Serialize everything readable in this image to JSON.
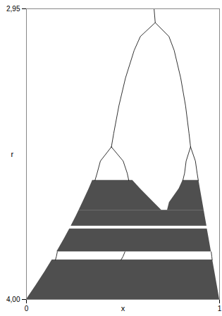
{
  "chart_data": {
    "type": "bifurcation",
    "x_label": "x",
    "y_label": "r",
    "xlim": [
      0,
      1
    ],
    "ylim": [
      2.95,
      4.0
    ],
    "xticks": [
      0,
      1
    ],
    "yticks": [
      {
        "value": 2.95,
        "label": "2,95"
      },
      {
        "value": 4.0,
        "label": "4,00"
      }
    ],
    "color": "#000000",
    "band_color": "#3c3c3c",
    "branches": [
      {
        "r": [
          2.95,
          3.0,
          3.05,
          3.1,
          3.2,
          3.3,
          3.4,
          3.449
        ],
        "x": [
          0.661,
          0.667,
          0.738,
          0.765,
          0.799,
          0.824,
          0.842,
          0.85
        ]
      },
      {
        "r": [
          3.0,
          3.05,
          3.1,
          3.2,
          3.3,
          3.4,
          3.449
        ],
        "x": [
          0.667,
          0.59,
          0.558,
          0.513,
          0.479,
          0.452,
          0.44
        ]
      },
      {
        "r": [
          3.449,
          3.5,
          3.544,
          3.57
        ],
        "x": [
          0.44,
          0.383,
          0.366,
          0.355
        ]
      },
      {
        "r": [
          3.449,
          3.5,
          3.544,
          3.57
        ],
        "x": [
          0.44,
          0.501,
          0.522,
          0.53
        ]
      },
      {
        "r": [
          3.449,
          3.5,
          3.544,
          3.57
        ],
        "x": [
          0.85,
          0.827,
          0.819,
          0.81
        ]
      },
      {
        "r": [
          3.449,
          3.5,
          3.544,
          3.57
        ],
        "x": [
          0.85,
          0.875,
          0.884,
          0.89
        ]
      },
      {
        "r": [
          3.828,
          3.845,
          3.857
        ],
        "x": [
          0.16,
          0.155,
          0.15
        ]
      },
      {
        "r": [
          3.828,
          3.845,
          3.857
        ],
        "x": [
          0.51,
          0.5,
          0.49
        ]
      },
      {
        "r": [
          3.828,
          3.845,
          3.857
        ],
        "x": [
          0.957,
          0.96,
          0.962
        ]
      }
    ],
    "chaos": [
      {
        "r": [
          3.57,
          3.6,
          3.65,
          3.678
        ],
        "xmin": [
          0.3425,
          0.324,
          0.291,
          0.272
        ],
        "xmax": [
          0.55,
          0.59,
          0.66,
          0.7
        ]
      },
      {
        "r": [
          3.57,
          3.6,
          3.65,
          3.678
        ],
        "xmin": [
          0.81,
          0.79,
          0.74,
          0.73
        ],
        "xmax": [
          0.8925,
          0.9,
          0.9125,
          0.9195
        ]
      },
      {
        "r": [
          3.678,
          3.7,
          3.735
        ],
        "xmin": [
          0.272,
          0.2567,
          0.231
        ],
        "xmax": [
          0.9195,
          0.925,
          0.934
        ]
      },
      {
        "r": [
          3.745,
          3.78,
          3.828
        ],
        "xmin": [
          0.2235,
          0.1965,
          0.1575
        ],
        "xmax": [
          0.936,
          0.945,
          0.957
        ]
      },
      {
        "r": [
          3.857,
          3.9,
          3.95,
          4.0
        ],
        "xmin": [
          0.133,
          0.095,
          0.0488,
          0.0
        ],
        "xmax": [
          0.964,
          0.975,
          0.9875,
          1.0
        ]
      }
    ]
  }
}
